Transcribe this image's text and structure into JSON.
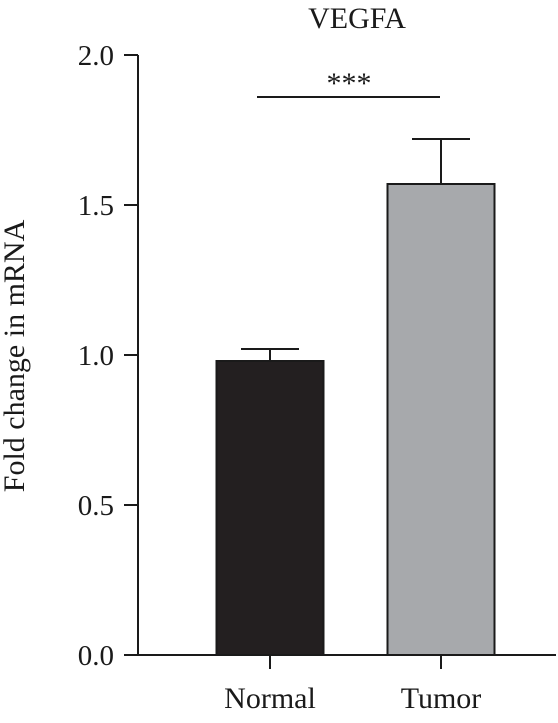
{
  "chart_data": {
    "type": "bar",
    "title": "VEGFA",
    "xlabel": "",
    "ylabel": "Fold change in mRNA",
    "ylim": [
      0,
      2.0
    ],
    "yticks": [
      "0.0",
      "0.5",
      "1.0",
      "1.5",
      "2.0"
    ],
    "ytick_values": [
      0,
      0.5,
      1.0,
      1.5,
      2.0
    ],
    "categories": [
      "Normal",
      "Tumor"
    ],
    "values": [
      0.98,
      1.57
    ],
    "errors": [
      0.04,
      0.15
    ],
    "colors": [
      "#231f20",
      "#a7a9ac"
    ],
    "significance": {
      "label": "***",
      "between": [
        "Normal",
        "Tumor"
      ]
    },
    "grid": false,
    "legend": "none"
  }
}
